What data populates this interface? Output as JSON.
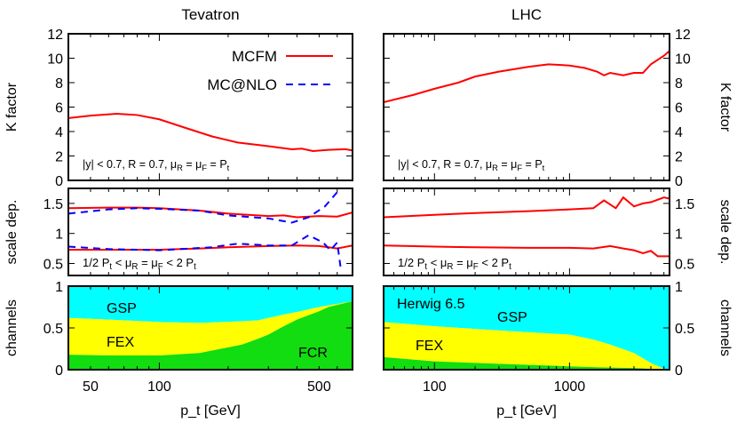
{
  "chart_data": [
    {
      "title": "Tevatron",
      "type": "line",
      "xlabel": "p_t [GeV]",
      "x_scale": "log",
      "xlim": [
        40,
        700
      ],
      "xticks": [
        50,
        100,
        500
      ],
      "panels": {
        "kfactor": {
          "ylabel": "K factor",
          "ylim": [
            0,
            12
          ],
          "yticks": [
            0,
            2,
            4,
            6,
            8,
            10,
            12
          ],
          "annotation": "|y| < 0.7,  R = 0.7, μR = μF = Pt",
          "legend": [
            "MCFM",
            "MC@NLO"
          ],
          "legend_placement": "top-right",
          "series": [
            {
              "name": "MCFM",
              "color": "#ff0000",
              "style": "solid",
              "x": [
                40,
                50,
                65,
                80,
                100,
                130,
                170,
                220,
                300,
                380,
                420,
                470,
                550,
                650,
                700
              ],
              "y": [
                5.1,
                5.3,
                5.45,
                5.35,
                5.0,
                4.3,
                3.6,
                3.1,
                2.8,
                2.55,
                2.6,
                2.4,
                2.5,
                2.55,
                2.45
              ]
            }
          ]
        },
        "scale": {
          "ylabel": "scale dep.",
          "ylim": [
            0.3,
            1.75
          ],
          "yticks": [
            0.5,
            1,
            1.5
          ],
          "annotation": "1/2 Pt < μR = μF < 2 Pt",
          "series": [
            {
              "name": "MCFM",
              "color": "#ff0000",
              "style": "solid",
              "x": [
                40,
                60,
                80,
                100,
                150,
                200,
                300,
                350,
                400,
                500,
                600,
                700
              ],
              "y": [
                1.42,
                1.43,
                1.43,
                1.42,
                1.38,
                1.33,
                1.29,
                1.3,
                1.27,
                1.29,
                1.28,
                1.35
              ]
            },
            {
              "name": "MCFM",
              "color": "#ff0000",
              "style": "solid",
              "x": [
                40,
                60,
                80,
                100,
                150,
                200,
                300,
                400,
                500,
                550,
                600,
                700
              ],
              "y": [
                0.73,
                0.73,
                0.73,
                0.73,
                0.75,
                0.77,
                0.79,
                0.8,
                0.79,
                0.77,
                0.75,
                0.8
              ]
            },
            {
              "name": "MC@NLO",
              "color": "#0000ff",
              "style": "dashed",
              "x": [
                40,
                60,
                80,
                100,
                150,
                200,
                300,
                380,
                450,
                530,
                620
              ],
              "y": [
                1.33,
                1.4,
                1.42,
                1.41,
                1.38,
                1.3,
                1.25,
                1.18,
                1.27,
                1.45,
                1.75
              ]
            },
            {
              "name": "MC@NLO",
              "color": "#0000ff",
              "style": "dashed",
              "x": [
                40,
                60,
                100,
                170,
                220,
                300,
                380,
                450,
                520,
                560,
                600,
                620
              ],
              "y": [
                0.78,
                0.74,
                0.72,
                0.77,
                0.83,
                0.8,
                0.8,
                0.97,
                0.85,
                0.72,
                0.85,
                0.45
              ]
            }
          ]
        },
        "channels": {
          "ylabel": "channels",
          "ylim": [
            0,
            1
          ],
          "yticks": [
            0,
            0.5,
            1
          ],
          "colors": {
            "GSP": "#00ffff",
            "FEX": "#ffff00",
            "FCR": "#11dd11"
          },
          "labels": [
            "GSP",
            "FEX",
            "FCR"
          ],
          "x": [
            40,
            60,
            100,
            150,
            230,
            270,
            300,
            350,
            400,
            500,
            550,
            700
          ],
          "FCR_top": [
            0.18,
            0.17,
            0.17,
            0.2,
            0.3,
            0.37,
            0.42,
            0.52,
            0.6,
            0.7,
            0.75,
            0.82
          ],
          "FEX_top": [
            0.62,
            0.6,
            0.57,
            0.56,
            0.58,
            0.59,
            0.62,
            0.66,
            0.69,
            0.75,
            0.77,
            0.82
          ]
        }
      }
    },
    {
      "title": "LHC",
      "type": "line",
      "xlabel": "p_t [GeV]",
      "x_scale": "log",
      "xlim": [
        42,
        5500
      ],
      "xticks": [
        100,
        1000
      ],
      "panels": {
        "kfactor": {
          "ylabel": "K factor",
          "ylim": [
            0,
            12
          ],
          "yticks": [
            0,
            2,
            4,
            6,
            8,
            10,
            12
          ],
          "annotation": "|y| < 0.7,  R = 0.7, μR = μF = Pt",
          "series": [
            {
              "name": "MCFM",
              "color": "#ff0000",
              "style": "solid",
              "x": [
                42,
                70,
                100,
                150,
                200,
                300,
                500,
                700,
                1000,
                1300,
                1600,
                1800,
                2000,
                2500,
                3000,
                3500,
                4000,
                5000,
                5500
              ],
              "y": [
                6.4,
                7.0,
                7.5,
                8.0,
                8.5,
                8.9,
                9.3,
                9.5,
                9.4,
                9.2,
                8.9,
                8.6,
                8.8,
                8.6,
                8.8,
                8.8,
                9.5,
                10.2,
                10.6
              ]
            }
          ]
        },
        "scale": {
          "ylabel": "scale dep.",
          "ylim": [
            0.3,
            1.75
          ],
          "yticks": [
            0.5,
            1,
            1.5
          ],
          "annotation": "1/2 Pt < μR = μF < 2 Pt",
          "series": [
            {
              "name": "MCFM",
              "color": "#ff0000",
              "style": "solid",
              "x": [
                42,
                100,
                200,
                500,
                1000,
                1500,
                1800,
                2200,
                2500,
                3000,
                3500,
                4000,
                5000,
                5500
              ],
              "y": [
                1.27,
                1.31,
                1.34,
                1.37,
                1.4,
                1.42,
                1.55,
                1.42,
                1.6,
                1.45,
                1.5,
                1.52,
                1.6,
                1.58
              ]
            },
            {
              "name": "MCFM",
              "color": "#ff0000",
              "style": "solid",
              "x": [
                42,
                100,
                200,
                500,
                1000,
                1500,
                2000,
                2500,
                3000,
                3500,
                4000,
                4500,
                5500
              ],
              "y": [
                0.8,
                0.78,
                0.77,
                0.76,
                0.76,
                0.75,
                0.79,
                0.75,
                0.72,
                0.67,
                0.71,
                0.62,
                0.62
              ]
            }
          ]
        },
        "channels": {
          "ylabel": "channels",
          "ylim": [
            0,
            1
          ],
          "yticks": [
            0,
            0.5,
            1
          ],
          "colors": {
            "GSP": "#00ffff",
            "FEX": "#ffff00",
            "FCR": "#11dd11"
          },
          "labels": [
            "Herwig 6.5",
            "GSP",
            "FEX"
          ],
          "x": [
            42,
            100,
            300,
            1000,
            1500,
            2000,
            3000,
            4000,
            5000,
            5500
          ],
          "FCR_top": [
            0.15,
            0.1,
            0.07,
            0.04,
            0.03,
            0.025,
            0.02,
            0.01,
            0.0,
            0.0
          ],
          "FEX_top": [
            0.57,
            0.52,
            0.47,
            0.42,
            0.36,
            0.3,
            0.2,
            0.08,
            0.01,
            0.0
          ]
        }
      }
    }
  ]
}
